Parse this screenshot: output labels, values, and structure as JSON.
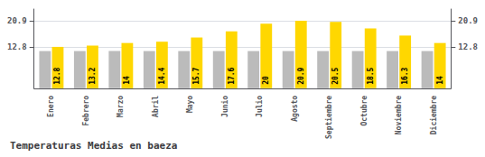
{
  "chart_data": {
    "type": "bar",
    "title": "Temperaturas Medias en baeza",
    "categories": [
      "Enero",
      "Febrero",
      "Marzo",
      "Abril",
      "Mayo",
      "Junio",
      "Julio",
      "Agosto",
      "Septiembre",
      "Octubre",
      "Noviembre",
      "Diciembre"
    ],
    "series": [
      {
        "color": "#BBBBBB",
        "values": [
          11.5,
          11.5,
          11.5,
          11.5,
          11.5,
          11.5,
          11.5,
          11.5,
          11.5,
          11.5,
          11.5,
          11.5
        ]
      },
      {
        "color": "#FFD700",
        "values": [
          12.8,
          13.2,
          14.0,
          14.4,
          15.7,
          17.6,
          20.0,
          20.9,
          20.5,
          18.5,
          16.3,
          14.0
        ],
        "data_labels": true
      }
    ],
    "ylim": [
      0,
      24.5
    ],
    "yticks": [
      12.8,
      20.9
    ],
    "y2lim": [
      0,
      24.5
    ],
    "y2ticks": [
      12.8,
      20.9
    ],
    "grid": true
  }
}
